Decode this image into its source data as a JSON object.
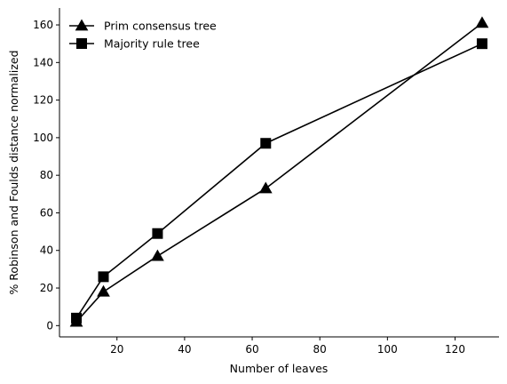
{
  "chart_data": {
    "type": "line",
    "title": "",
    "xlabel": "Number of leaves",
    "ylabel": "% Robinson and Foulds distance normalized",
    "xlim": [
      3,
      133
    ],
    "ylim": [
      -6,
      169
    ],
    "xticks": [
      20,
      40,
      60,
      80,
      100,
      120
    ],
    "yticks": [
      0,
      20,
      40,
      60,
      80,
      100,
      120,
      140,
      160
    ],
    "grid": false,
    "legend_position": "top-left",
    "series": [
      {
        "name": "Prim consensus tree",
        "marker": "triangle",
        "color": "#000000",
        "x": [
          8,
          16,
          32,
          64,
          128
        ],
        "y": [
          2,
          18,
          37,
          73,
          161
        ]
      },
      {
        "name": "Majority rule tree",
        "marker": "square",
        "color": "#000000",
        "x": [
          8,
          16,
          32,
          64,
          128
        ],
        "y": [
          4,
          26,
          49,
          97,
          150
        ]
      }
    ]
  }
}
